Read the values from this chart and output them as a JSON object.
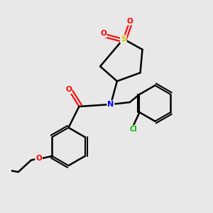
{
  "background_color": "#e8e8e8",
  "line_color": "#000000",
  "bond_width": 1.8,
  "atom_colors": {
    "S": "#cccc00",
    "O": "#ff0000",
    "N": "#0000ff",
    "Cl": "#00bb00",
    "C": "#000000"
  },
  "figsize": [
    3.0,
    3.0
  ],
  "dpi": 100
}
